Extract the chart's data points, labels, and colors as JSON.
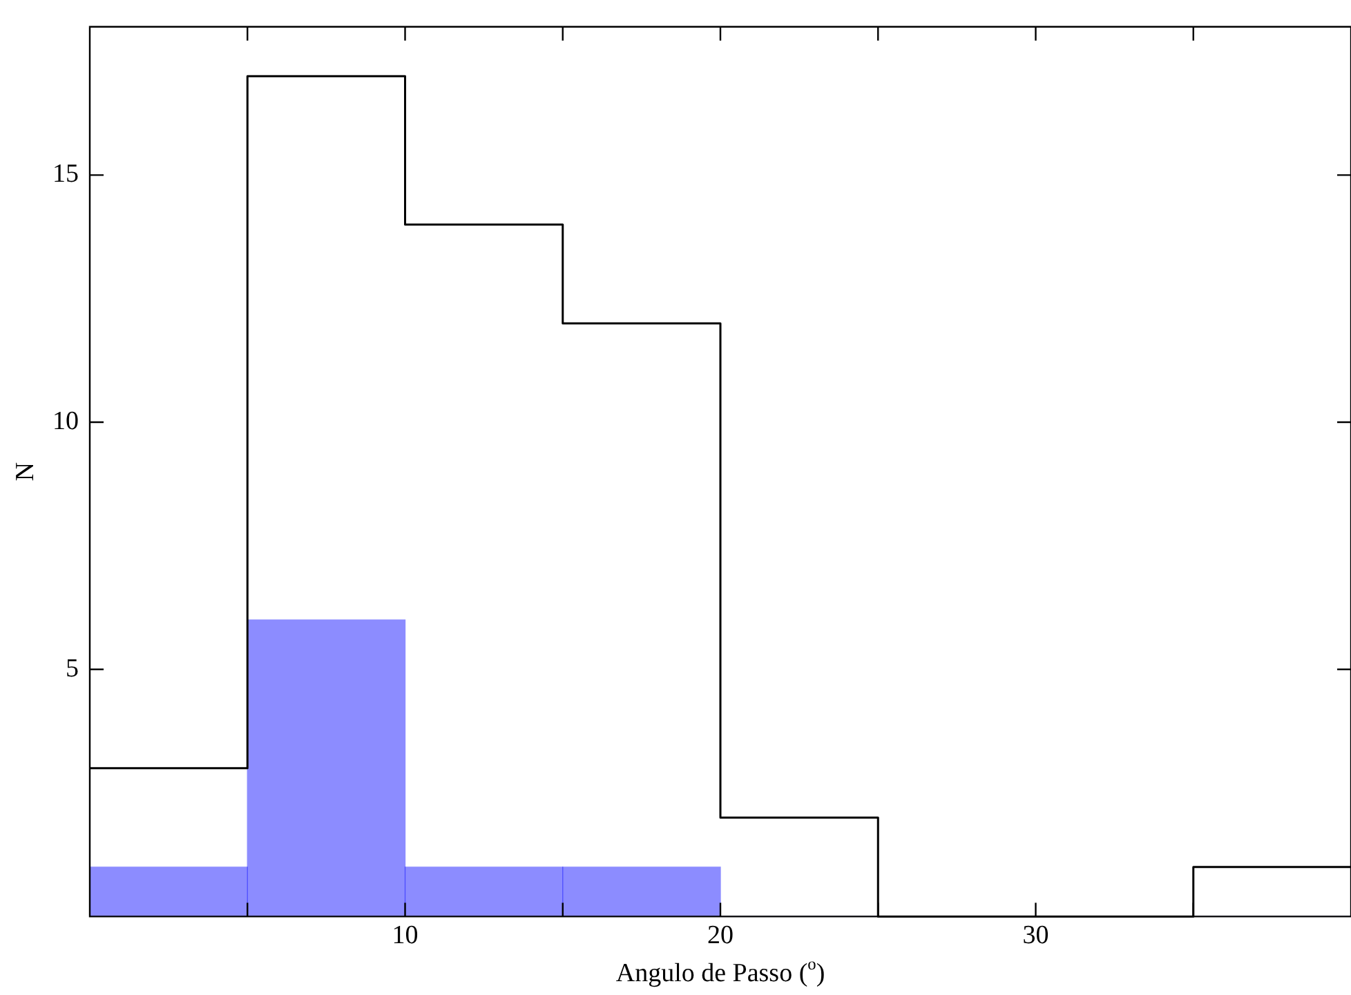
{
  "chart_data": {
    "type": "histogram",
    "xlabel": "Angulo de Passo ($^{o}$)",
    "ylabel": "N",
    "bins": [
      0,
      5,
      10,
      15,
      20,
      25,
      30,
      35,
      40
    ],
    "values": [
      1,
      6,
      1,
      1,
      0,
      0,
      0,
      0
    ],
    "color": "#0000ff",
    "series": [
      {
        "type": "step",
        "color": "#000000",
        "x": [
          0,
          5,
          10,
          15,
          20,
          25,
          30,
          35,
          40
        ],
        "values": [
          3,
          17,
          14,
          12,
          2,
          0,
          0,
          1,
          1
        ]
      }
    ],
    "xlim": [
      0,
      40
    ],
    "xticks": [
      {
        "value": 5,
        "label": null
      },
      10,
      {
        "value": 15,
        "label": null
      },
      20,
      {
        "value": 25,
        "label": null
      },
      30,
      {
        "value": 35,
        "label": null
      }
    ],
    "ylim": [
      0,
      18
    ],
    "yticks": [
      5,
      10,
      15
    ],
    "grid": false,
    "legend": false
  }
}
